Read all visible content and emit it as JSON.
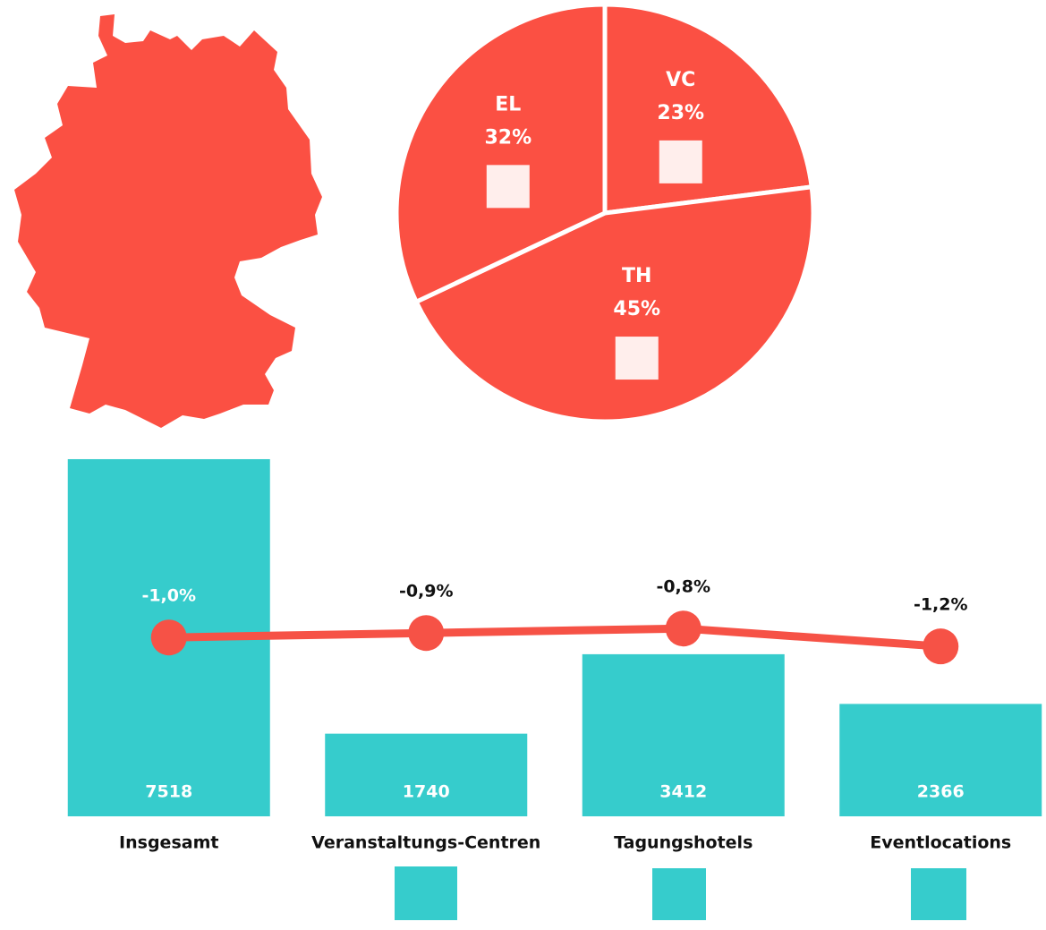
{
  "chart_data": [
    {
      "type": "pie",
      "categories": [
        "VC",
        "TH",
        "EL"
      ],
      "values": [
        23,
        45,
        32
      ],
      "value_labels": [
        "23%",
        "45%",
        "32%"
      ],
      "color": "#fb5043"
    },
    {
      "type": "bar",
      "categories": [
        "Insgesamt",
        "Veranstaltungs-Centren",
        "Tagungshotels",
        "Eventlocations"
      ],
      "ylim": [
        0,
        8000
      ],
      "y2lim": [
        -5,
        3.5
      ],
      "series": [
        {
          "type": "bar",
          "color": "#36cccc",
          "values": [
            7518,
            1740,
            3412,
            2366
          ]
        },
        {
          "type": "line",
          "axis": "y2",
          "color": "#f65246",
          "values": [
            -1.0,
            -0.9,
            -0.8,
            -1.2
          ],
          "value_labels": [
            "-1,0%",
            "-0,9%",
            "-0,8%",
            "-1,2%"
          ]
        }
      ]
    }
  ]
}
